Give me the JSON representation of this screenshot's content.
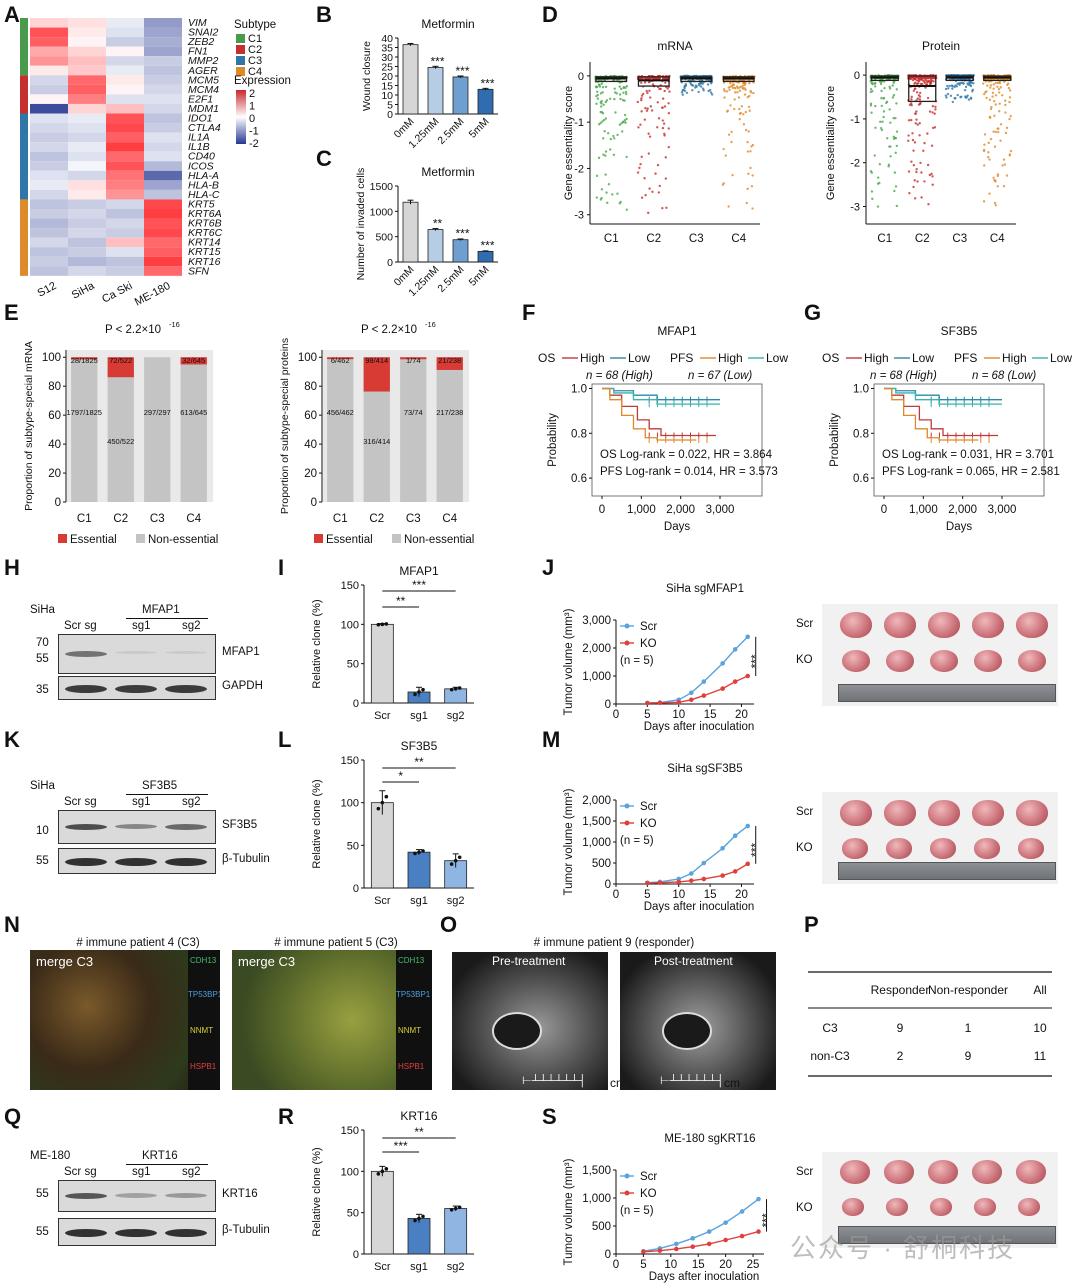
{
  "panels": {
    "A": {
      "letter": "A",
      "genes": [
        "VIM",
        "SNAI2",
        "ZEB2",
        "FN1",
        "MMP2",
        "AGER",
        "MCM5",
        "MCM4",
        "E2F1",
        "MDM1",
        "IDO1",
        "CTLA4",
        "IL1A",
        "IL1B",
        "CD40",
        "ICOS",
        "HLA-A",
        "HLA-B",
        "HLA-C",
        "KRT5",
        "KRT6A",
        "KRT6B",
        "KRT6C",
        "KRT14",
        "KRT15",
        "KRT16",
        "SFN"
      ],
      "columns": [
        "S12",
        "SiHa",
        "Ca Ski",
        "ME-180"
      ],
      "values": [
        [
          0.4,
          0.3,
          -0.2,
          -1.0
        ],
        [
          1.6,
          0.2,
          -0.3,
          -0.9
        ],
        [
          1.5,
          0.1,
          -0.5,
          -0.8
        ],
        [
          0.8,
          0.4,
          0.1,
          -0.9
        ],
        [
          1.0,
          0.6,
          -0.4,
          -0.5
        ],
        [
          0.2,
          0.5,
          -0.2,
          -0.6
        ],
        [
          -0.4,
          1.4,
          0.2,
          -0.5
        ],
        [
          -0.5,
          1.5,
          0.1,
          -0.4
        ],
        [
          0.1,
          1.2,
          -0.3,
          -0.3
        ],
        [
          -1.8,
          0.4,
          0.6,
          -0.4
        ],
        [
          -0.3,
          -0.2,
          1.6,
          -0.6
        ],
        [
          -0.4,
          -0.3,
          1.7,
          -0.5
        ],
        [
          -0.5,
          -0.4,
          1.5,
          -0.3
        ],
        [
          -0.4,
          -0.2,
          1.8,
          -0.4
        ],
        [
          -0.6,
          -0.3,
          1.4,
          -0.3
        ],
        [
          -0.5,
          -0.1,
          1.6,
          -0.7
        ],
        [
          -0.3,
          -0.4,
          1.3,
          -1.5
        ],
        [
          -0.2,
          0.3,
          1.2,
          -0.9
        ],
        [
          -0.4,
          0.2,
          1.0,
          -0.6
        ],
        [
          -0.6,
          -0.5,
          -0.4,
          1.7
        ],
        [
          -0.5,
          -0.4,
          -0.6,
          1.8
        ],
        [
          -0.7,
          -0.5,
          -0.4,
          1.6
        ],
        [
          -0.6,
          -0.4,
          -0.5,
          1.7
        ],
        [
          -0.4,
          -0.6,
          0.6,
          1.4
        ],
        [
          -0.6,
          -0.5,
          -0.3,
          1.5
        ],
        [
          -0.5,
          -0.7,
          -0.6,
          1.8
        ],
        [
          -0.6,
          -0.4,
          -0.5,
          1.4
        ]
      ],
      "subtype_title": "Subtype",
      "subtypes": [
        {
          "name": "C1",
          "color": "#4a9a4c"
        },
        {
          "name": "C2",
          "color": "#c62f2f"
        },
        {
          "name": "C3",
          "color": "#2f77a8"
        },
        {
          "name": "C4",
          "color": "#dc8a2a"
        }
      ],
      "subtype_rows": [
        6,
        4,
        9,
        8
      ],
      "expression_title": "Expression",
      "expression_ticks": [
        "2",
        "1",
        "0",
        "-1",
        "-2"
      ]
    },
    "B": {
      "letter": "B",
      "chart_data": {
        "type": "bar",
        "title": "Metformin",
        "ylabel": "Wound closure",
        "categories": [
          "0mM",
          "1.25mM",
          "2.5mM",
          "5mM"
        ],
        "values": [
          36.5,
          24.5,
          19.5,
          13
        ],
        "sig": [
          "",
          "***",
          "***",
          "***"
        ],
        "ylim": [
          0,
          40
        ],
        "yticks": [
          "0",
          "5",
          "10",
          "15",
          "20",
          "25",
          "30",
          "35",
          "40"
        ]
      }
    },
    "C": {
      "letter": "C",
      "chart_data": {
        "type": "bar",
        "title": "Metformin",
        "ylabel": "Number of invaded cells",
        "categories": [
          "0mM",
          "1.25mM",
          "2.5mM",
          "5mM"
        ],
        "values": [
          1180,
          640,
          440,
          210
        ],
        "sig": [
          "",
          "**",
          "***",
          "***"
        ],
        "ylim": [
          0,
          1500
        ],
        "yticks": [
          "0",
          "500",
          "1000",
          "1500"
        ]
      }
    },
    "D": {
      "letter": "D",
      "ylabel": "Gene essentiality score",
      "categories": [
        "C1",
        "C2",
        "C3",
        "C4"
      ],
      "yticks": [
        "0",
        "-1",
        "-2",
        "-3"
      ],
      "charts": [
        {
          "title": "mRNA",
          "type": "box",
          "ylim": [
            -3.2,
            0.3
          ]
        },
        {
          "title": "Protein",
          "type": "box",
          "ylim": [
            -3.4,
            0.3
          ]
        }
      ]
    },
    "E": {
      "letter": "E",
      "pvalue": "P < 2.2×10",
      "pexp": "-16",
      "legend": [
        "Essential",
        "Non-essential"
      ],
      "legend_colors": [
        "#d83a34",
        "#c4c4c4"
      ],
      "categories": [
        "C1",
        "C2",
        "C3",
        "C4"
      ],
      "yticks": [
        "0",
        "20",
        "40",
        "60",
        "80",
        "100"
      ],
      "charts": [
        {
          "ylabel": "Proportion of subtype-special mRNA",
          "essential": [
            1.5,
            13.8,
            0,
            5.0
          ],
          "ess_labels": [
            "28/1825",
            "72/522",
            "",
            "32/645"
          ],
          "non_labels": [
            "1797/1825",
            "450/522",
            "297/297",
            "613/645"
          ]
        },
        {
          "ylabel": "Proportion of subtype-special proteins",
          "essential": [
            1.3,
            23.7,
            1.4,
            8.8
          ],
          "ess_labels": [
            "6/462",
            "98/414",
            "1/74",
            "21/238"
          ],
          "non_labels": [
            "456/462",
            "316/414",
            "73/74",
            "217/238"
          ]
        }
      ]
    },
    "F": {
      "letter": "F",
      "title": "MFAP1",
      "legend": {
        "os": "OS",
        "pfs": "PFS",
        "high": "High",
        "low": "Low"
      },
      "n_high": "n = 68 (High)",
      "n_low": "n = 67 (Low)",
      "stat1": "OS Log-rank = 0.022, HR = 3.864",
      "stat2": "PFS Log-rank = 0.014, HR = 3.573",
      "ylabel": "Probability",
      "xlabel": "Days",
      "xticks": [
        "0",
        "1,000",
        "2,000",
        "3,000"
      ],
      "yticks": [
        "1.0",
        "0.8",
        "0.6"
      ]
    },
    "G": {
      "letter": "G",
      "title": "SF3B5",
      "legend": {
        "os": "OS",
        "pfs": "PFS",
        "high": "High",
        "low": "Low"
      },
      "n_high": "n = 68 (High)",
      "n_low": "n = 68 (Low)",
      "stat1": "OS Log-rank = 0.031, HR = 3.701",
      "stat2": "PFS Log-rank = 0.065, HR = 2.581",
      "ylabel": "Probability",
      "xlabel": "Days",
      "xticks": [
        "0",
        "1,000",
        "2,000",
        "3,000"
      ],
      "yticks": [
        "1.0",
        "0.8",
        "0.6"
      ]
    },
    "H": {
      "letter": "H",
      "cell": "SiHa",
      "group": "MFAP1",
      "lanes": [
        "Scr sg",
        "sg1",
        "sg2"
      ],
      "markers": [
        "70",
        "55",
        "35"
      ],
      "targets": [
        "MFAP1",
        "GAPDH"
      ]
    },
    "I": {
      "letter": "I",
      "chart_data": {
        "type": "bar",
        "title": "MFAP1",
        "ylabel": "Relative clone (%)",
        "categories": [
          "Scr",
          "sg1",
          "sg2"
        ],
        "values": [
          100,
          14,
          18
        ],
        "ylim": [
          0,
          150
        ],
        "yticks": [
          "0",
          "50",
          "100",
          "150"
        ],
        "sig": [
          "**",
          "***"
        ]
      }
    },
    "J": {
      "letter": "J",
      "chart_data": {
        "type": "line",
        "title": "SiHa sgMFAP1",
        "ylabel": "Tumor volume (mm³)",
        "xlabel": "Days after inoculation",
        "x": [
          5,
          7,
          10,
          12,
          14,
          17,
          19,
          21
        ],
        "series": [
          {
            "name": "Scr",
            "values": [
              40,
              50,
              150,
              400,
              800,
              1450,
              1950,
              2400
            ]
          },
          {
            "name": "KO",
            "values": [
              30,
              40,
              60,
              150,
              300,
              550,
              800,
              1000
            ]
          }
        ],
        "ylim": [
          0,
          3000
        ],
        "yticks": [
          "0",
          "1,000",
          "2,000",
          "3,000"
        ],
        "xticks": [
          "0",
          "5",
          "10",
          "15",
          "20"
        ],
        "n": "(n = 5)",
        "sig": "***"
      },
      "photo_rows": [
        "Scr",
        "KO"
      ]
    },
    "K": {
      "letter": "K",
      "cell": "SiHa",
      "group": "SF3B5",
      "lanes": [
        "Scr sg",
        "sg1",
        "sg2"
      ],
      "markers": [
        "10",
        "55"
      ],
      "targets": [
        "SF3B5",
        "β-Tubulin"
      ]
    },
    "L": {
      "letter": "L",
      "chart_data": {
        "type": "bar",
        "title": "SF3B5",
        "ylabel": "Relative clone (%)",
        "categories": [
          "Scr",
          "sg1",
          "sg2"
        ],
        "values": [
          100,
          42,
          32
        ],
        "ylim": [
          0,
          150
        ],
        "yticks": [
          "0",
          "50",
          "100",
          "150"
        ],
        "sig": [
          "*",
          "**"
        ]
      }
    },
    "M": {
      "letter": "M",
      "chart_data": {
        "type": "line",
        "title": "SiHa sgSF3B5",
        "ylabel": "Tumor volume (mm³)",
        "xlabel": "Days after inoculation",
        "x": [
          5,
          7,
          10,
          12,
          14,
          17,
          19,
          21
        ],
        "series": [
          {
            "name": "Scr",
            "values": [
              30,
              50,
              120,
              250,
              500,
              850,
              1150,
              1380
            ]
          },
          {
            "name": "KO",
            "values": [
              20,
              30,
              50,
              80,
              120,
              200,
              300,
              480
            ]
          }
        ],
        "ylim": [
          0,
          2000
        ],
        "yticks": [
          "0",
          "500",
          "1,000",
          "1,500",
          "2,000"
        ],
        "xticks": [
          "0",
          "5",
          "10",
          "15",
          "20"
        ],
        "n": "(n = 5)",
        "sig": "***"
      },
      "photo_rows": [
        "Scr",
        "KO"
      ]
    },
    "N": {
      "letter": "N",
      "titles": [
        "# immune patient 4 (C3)",
        "# immune patient 5 (C3)"
      ],
      "merge": "merge C3",
      "channels": [
        "CDH13",
        "TP53BP1",
        "NNMT",
        "HSPB1"
      ]
    },
    "O": {
      "letter": "O",
      "title": "# immune patient 9 (responder)",
      "labels": [
        "Pre-treatment",
        "Post-treatment"
      ],
      "unit": "cm"
    },
    "P": {
      "letter": "P",
      "header": [
        "",
        "Responder",
        "Non-responder",
        "All"
      ],
      "rows": [
        [
          "C3",
          "9",
          "1",
          "10"
        ],
        [
          "non-C3",
          "2",
          "9",
          "11"
        ]
      ]
    },
    "Q": {
      "letter": "Q",
      "cell": "ME-180",
      "group": "KRT16",
      "lanes": [
        "Scr sg",
        "sg1",
        "sg2"
      ],
      "markers": [
        "55",
        "55"
      ],
      "targets": [
        "KRT16",
        "β-Tubulin"
      ]
    },
    "R": {
      "letter": "R",
      "chart_data": {
        "type": "bar",
        "title": "KRT16",
        "ylabel": "Relative clone (%)",
        "categories": [
          "Scr",
          "sg1",
          "sg2"
        ],
        "values": [
          100,
          43,
          55
        ],
        "ylim": [
          0,
          150
        ],
        "yticks": [
          "0",
          "50",
          "100",
          "150"
        ],
        "sig": [
          "***",
          "**"
        ]
      }
    },
    "S": {
      "letter": "S",
      "chart_data": {
        "type": "line",
        "title": "ME-180 sgKRT16",
        "ylabel": "Tumor volume (mm³)",
        "xlabel": "Days after inoculation",
        "x": [
          5,
          8,
          11,
          14,
          17,
          20,
          23,
          26
        ],
        "series": [
          {
            "name": "Scr",
            "values": [
              50,
              100,
              180,
              280,
              400,
              560,
              760,
              980
            ]
          },
          {
            "name": "KO",
            "values": [
              40,
              60,
              90,
              130,
              180,
              250,
              320,
              400
            ]
          }
        ],
        "ylim": [
          0,
          1500
        ],
        "yticks": [
          "0",
          "500",
          "1,000",
          "1,500"
        ],
        "xticks": [
          "0",
          "5",
          "10",
          "15",
          "20",
          "25"
        ],
        "n": "(n = 5)",
        "sig": "***"
      },
      "photo_rows": [
        "Scr",
        "KO"
      ]
    }
  },
  "watermark": "公众号 · 舒桐科技"
}
